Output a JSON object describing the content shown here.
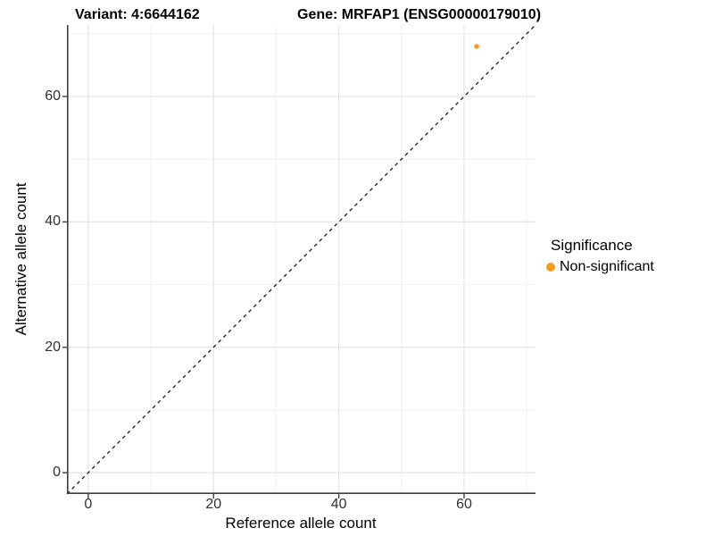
{
  "title": {
    "variant": "Variant: 4:6644162",
    "gene": "Gene: MRFAP1 (ENSG00000179010)"
  },
  "chart_data": {
    "type": "scatter",
    "title": "Variant: 4:6644162    Gene: MRFAP1 (ENSG00000179010)",
    "xlabel": "Reference allele count",
    "ylabel": "Alternative allele count",
    "xlim": [
      -3.4,
      71.4
    ],
    "ylim": [
      -3.4,
      71.4
    ],
    "x_ticks": [
      0,
      20,
      40,
      60
    ],
    "y_ticks": [
      0,
      20,
      40,
      60
    ],
    "x_minor_ticks": [
      10,
      30,
      50,
      70
    ],
    "y_minor_ticks": [
      10,
      30,
      50,
      70
    ],
    "grid": true,
    "points": [
      {
        "x": 62,
        "y": 68,
        "series": "Non-significant"
      }
    ],
    "reference_line": {
      "equation": "y = x",
      "style": "dashed",
      "color": "#1a1a1a"
    },
    "legend": {
      "title": "Significance",
      "position": "right",
      "entries": [
        {
          "label": "Non-significant",
          "color": "#F89C20"
        }
      ]
    }
  },
  "colors": {
    "point": "#F89C20",
    "axis_line": "#3f3f3f",
    "tick_mark": "#3f3f3f",
    "grid_major": "#e4e4e4",
    "grid_minor": "#f1f1f1",
    "dashed_line": "#1a1a1a",
    "background": "#ffffff"
  }
}
